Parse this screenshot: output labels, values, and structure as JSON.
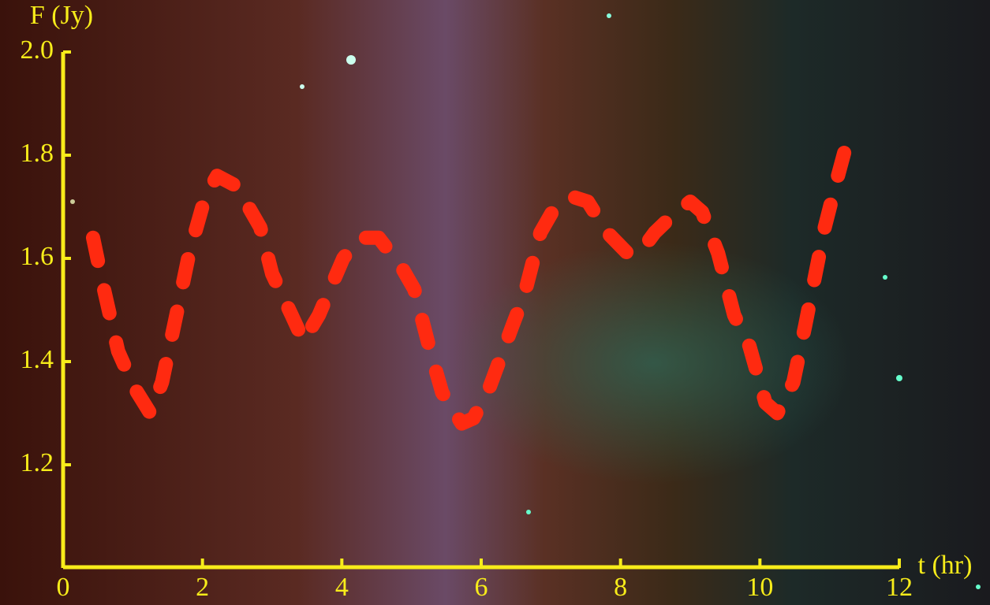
{
  "chart_data": {
    "type": "line",
    "x_label": "t (hr)",
    "y_label": "F (Jy)",
    "x": [
      0.43,
      0.57,
      0.79,
      1.02,
      1.25,
      1.42,
      1.64,
      1.81,
      2.04,
      2.21,
      2.49,
      2.83,
      3.0,
      3.28,
      3.45,
      3.67,
      4.02,
      4.25,
      4.53,
      4.87,
      5.04,
      5.27,
      5.44,
      5.72,
      5.89,
      6.12,
      6.45,
      6.62,
      6.85,
      7.02,
      7.3,
      7.53,
      7.81,
      8.1,
      8.27,
      8.49,
      8.72,
      9.0,
      9.17,
      9.4,
      9.63,
      9.85,
      10.08,
      10.25,
      10.48,
      10.65,
      10.93,
      11.1,
      11.22
    ],
    "series": [
      {
        "color": "#ff2a10",
        "values": [
          1.64,
          1.55,
          1.42,
          1.35,
          1.3,
          1.36,
          1.5,
          1.61,
          1.72,
          1.76,
          1.74,
          1.66,
          1.57,
          1.49,
          1.44,
          1.49,
          1.6,
          1.64,
          1.64,
          1.58,
          1.54,
          1.42,
          1.34,
          1.28,
          1.29,
          1.35,
          1.47,
          1.53,
          1.65,
          1.69,
          1.72,
          1.71,
          1.65,
          1.61,
          1.61,
          1.65,
          1.68,
          1.71,
          1.69,
          1.61,
          1.49,
          1.43,
          1.32,
          1.3,
          1.36,
          1.47,
          1.66,
          1.75,
          1.81
        ]
      }
    ],
    "xlim": [
      0,
      12
    ],
    "xticks": [
      0,
      2,
      4,
      6,
      8,
      10,
      12
    ],
    "ylim": [
      1.0,
      2.0
    ],
    "yticks": [
      1.2,
      1.4,
      1.6,
      1.8,
      {
        "value": 2.0,
        "label": "2.0"
      }
    ],
    "axis_color": "#f7ec1a",
    "dashed": true
  }
}
